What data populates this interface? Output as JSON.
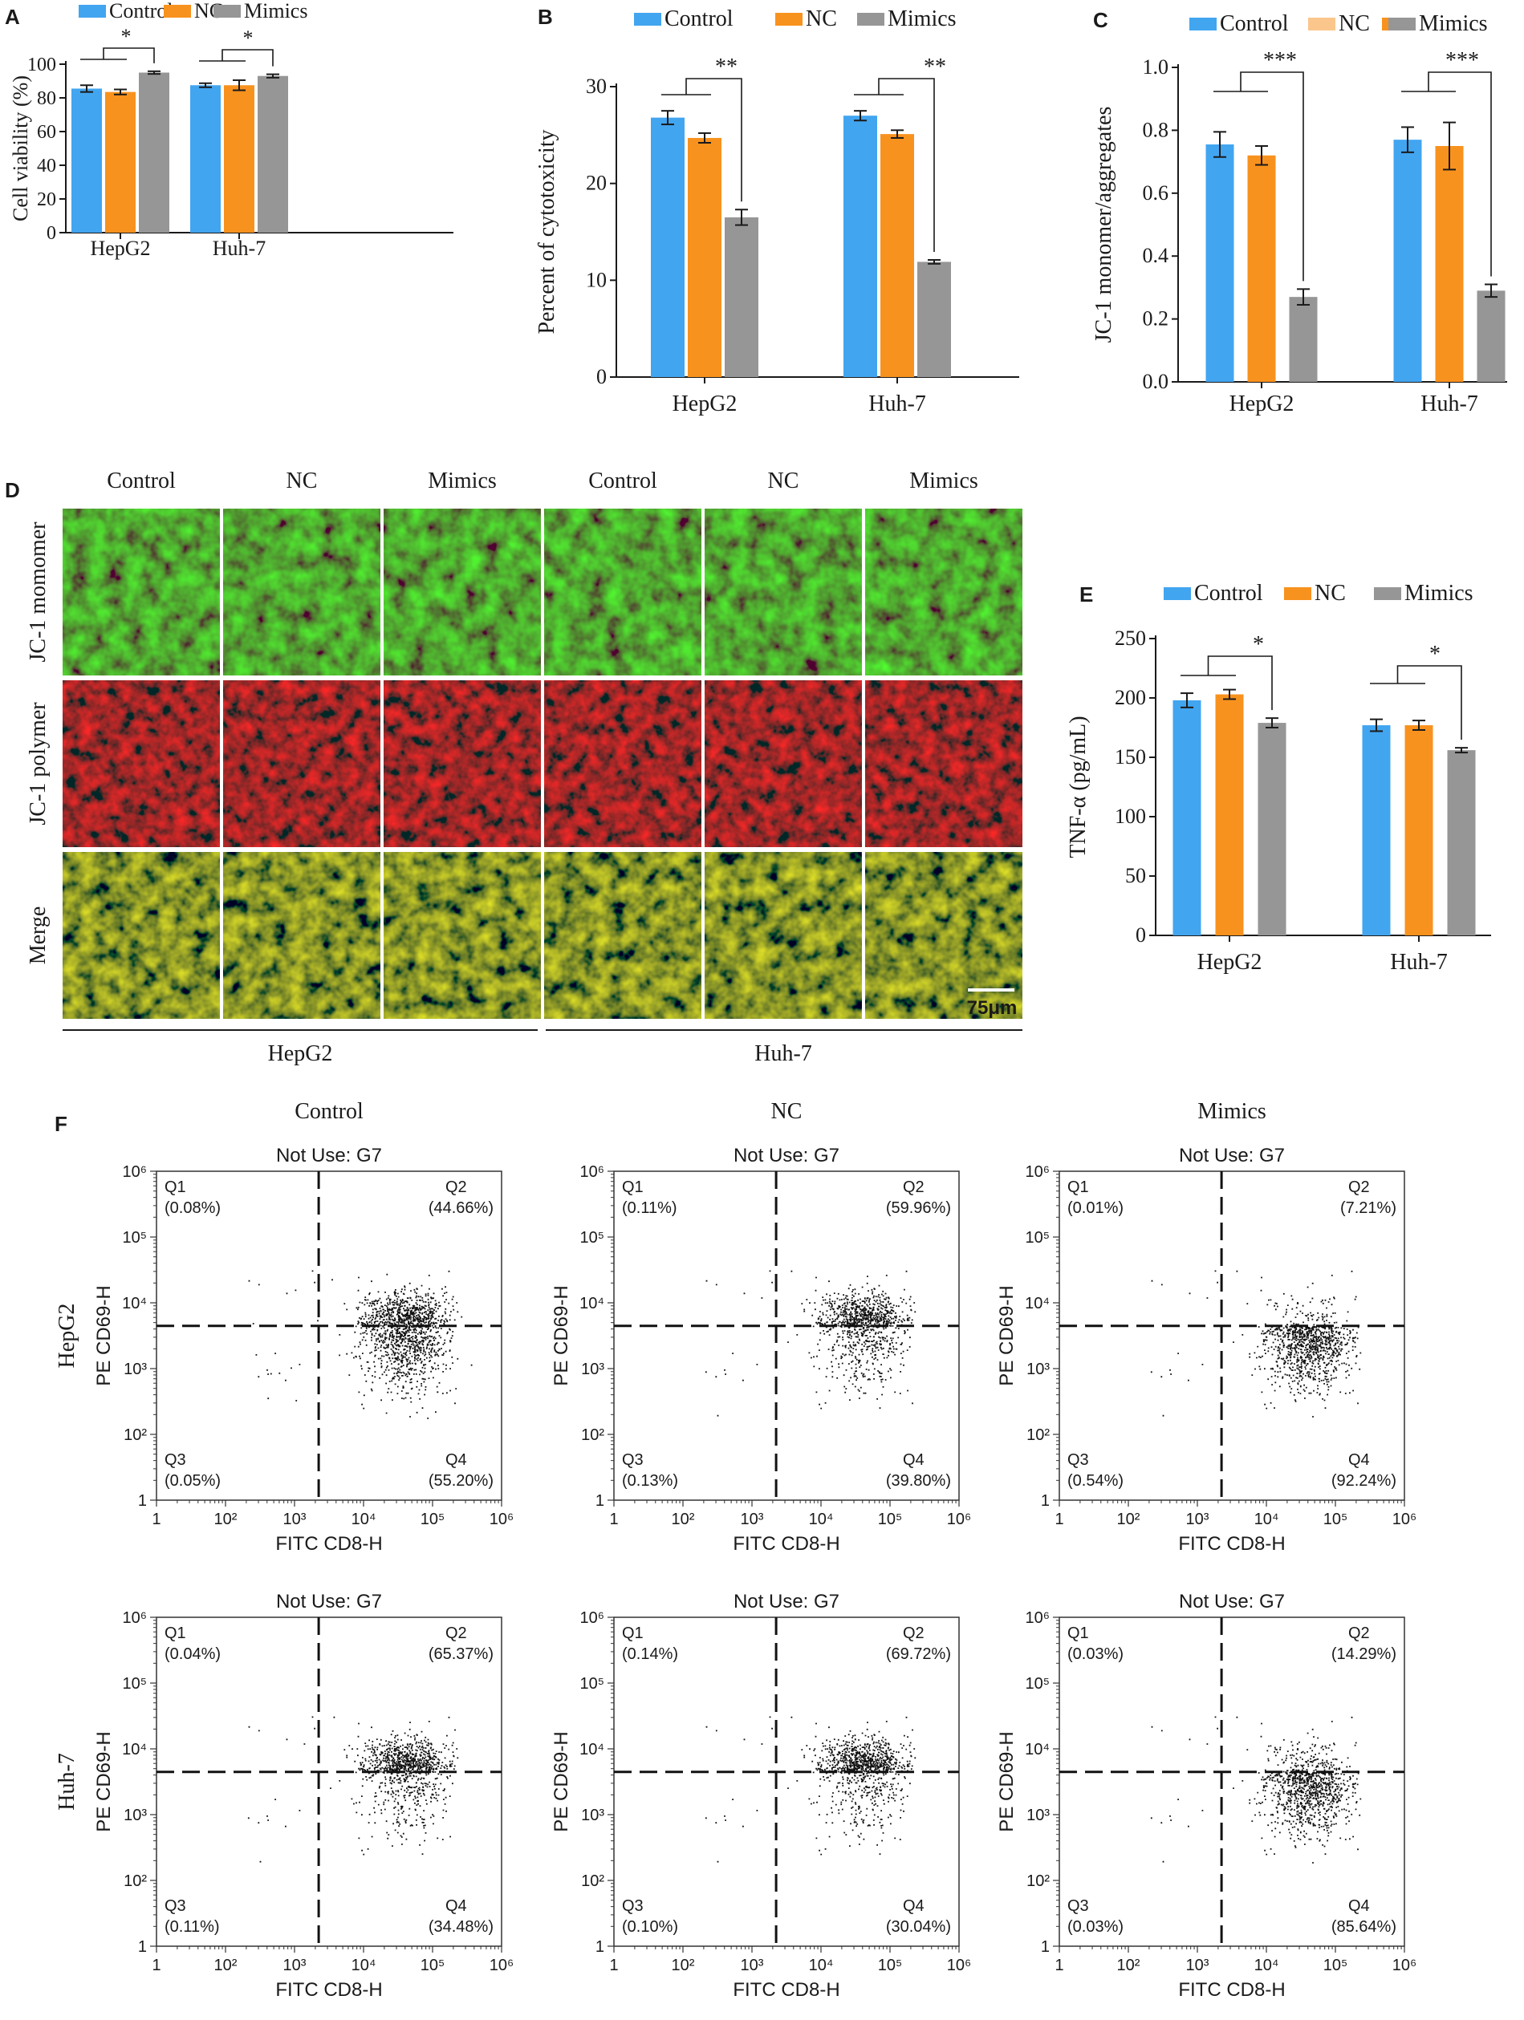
{
  "colors": {
    "control": "#42a5f0",
    "nc": "#f8921e",
    "nc_light": "#fbc68c",
    "mimics": "#969696",
    "axis": "#1a1a1a"
  },
  "panel_letters": {
    "A": "A",
    "B": "B",
    "C": "C",
    "D": "D",
    "E": "E",
    "F": "F"
  },
  "legend": {
    "control": "Control",
    "nc": "NC",
    "mimics": "Mimics"
  },
  "chart_data": [
    {
      "id": "A",
      "type": "bar",
      "categories": [
        "HepG2",
        "Huh-7"
      ],
      "series": [
        {
          "name": "Control",
          "values": [
            85.5,
            87.5
          ],
          "errors": [
            2.0,
            1.2
          ]
        },
        {
          "name": "NC",
          "values": [
            83.5,
            87.5
          ],
          "errors": [
            1.5,
            3.0
          ]
        },
        {
          "name": "Mimics",
          "values": [
            95,
            93
          ],
          "errors": [
            0.8,
            1.0
          ]
        }
      ],
      "ylabel": "Cell viability (%)",
      "ylim": [
        0,
        100
      ],
      "yticks": [
        "0",
        "20",
        "40",
        "60",
        "80",
        "100"
      ],
      "significance": [
        "*",
        "*"
      ],
      "grid": false,
      "legend_position": "top"
    },
    {
      "id": "B",
      "type": "bar",
      "categories": [
        "HepG2",
        "Huh-7"
      ],
      "series": [
        {
          "name": "Control",
          "values": [
            26.8,
            27.0
          ],
          "errors": [
            0.7,
            0.5
          ]
        },
        {
          "name": "NC",
          "values": [
            24.7,
            25.1
          ],
          "errors": [
            0.5,
            0.4
          ]
        },
        {
          "name": "Mimics",
          "values": [
            16.5,
            11.9
          ],
          "errors": [
            0.8,
            0.2
          ]
        }
      ],
      "ylabel": "Percent of cytotoxicity",
      "ylim": [
        0,
        30
      ],
      "yticks": [
        "0",
        "10",
        "20",
        "30"
      ],
      "significance": [
        "**",
        "**"
      ],
      "grid": false,
      "legend_position": "top"
    },
    {
      "id": "C",
      "type": "bar",
      "categories": [
        "HepG2",
        "Huh-7"
      ],
      "series": [
        {
          "name": "Control",
          "values": [
            0.755,
            0.77
          ],
          "errors": [
            0.04,
            0.04
          ]
        },
        {
          "name": "NC",
          "values": [
            0.72,
            0.75
          ],
          "errors": [
            0.03,
            0.075
          ]
        },
        {
          "name": "Mimics",
          "values": [
            0.27,
            0.29
          ],
          "errors": [
            0.025,
            0.02
          ]
        }
      ],
      "ylabel": "JC-1 monomer/aggregates",
      "ylim": [
        0,
        1.0
      ],
      "yticks": [
        "0.0",
        "0.2",
        "0.4",
        "0.6",
        "0.8",
        "1.0"
      ],
      "significance": [
        "***",
        "***"
      ],
      "grid": false,
      "legend_position": "top"
    },
    {
      "id": "E",
      "type": "bar",
      "categories": [
        "HepG2",
        "Huh-7"
      ],
      "series": [
        {
          "name": "Control",
          "values": [
            198,
            177
          ],
          "errors": [
            6,
            5
          ]
        },
        {
          "name": "NC",
          "values": [
            203,
            177
          ],
          "errors": [
            4,
            4
          ]
        },
        {
          "name": "Mimics",
          "values": [
            179,
            156
          ],
          "errors": [
            4,
            2
          ]
        }
      ],
      "ylabel": "TNF-α (pg/mL)",
      "ylim": [
        0,
        250
      ],
      "yticks": [
        "0",
        "50",
        "100",
        "150",
        "200",
        "250"
      ],
      "significance": [
        "*",
        "*"
      ],
      "grid": false,
      "legend_position": "top"
    }
  ],
  "panel_d": {
    "columns": [
      "Control",
      "NC",
      "Mimics",
      "Control",
      "NC",
      "Mimics"
    ],
    "rows": [
      "JC-1 momomer",
      "JC-1 polymer",
      "Merge"
    ],
    "groups": [
      "HepG2",
      "Huh-7"
    ],
    "scale_bar": "75μm"
  },
  "panel_f": {
    "columns": [
      "Control",
      "NC",
      "Mimics"
    ],
    "rows": [
      "HepG2",
      "Huh-7"
    ],
    "plot_title": "Not Use:  G7",
    "xlabel": "FITC CD8-H",
    "ylabel": "PE CD69-H",
    "axis_ticks": [
      "1",
      "10²",
      "10³",
      "10⁴",
      "10⁵",
      "10⁶"
    ],
    "quadrant_names": [
      "Q1",
      "Q2",
      "Q3",
      "Q4"
    ],
    "quadrants": [
      [
        [
          "(0.08%)",
          "(44.66%)",
          "(0.05%)",
          "(55.20%)"
        ],
        [
          "(0.11%)",
          "(59.96%)",
          "(0.13%)",
          "(39.80%)"
        ],
        [
          "(0.01%)",
          "(7.21%)",
          "(0.54%)",
          "(92.24%)"
        ]
      ],
      [
        [
          "(0.04%)",
          "(65.37%)",
          "(0.11%)",
          "(34.48%)"
        ],
        [
          "(0.14%)",
          "(69.72%)",
          "(0.10%)",
          "(30.04%)"
        ],
        [
          "(0.03%)",
          "(14.29%)",
          "(0.03%)",
          "(85.64%)"
        ]
      ]
    ]
  }
}
